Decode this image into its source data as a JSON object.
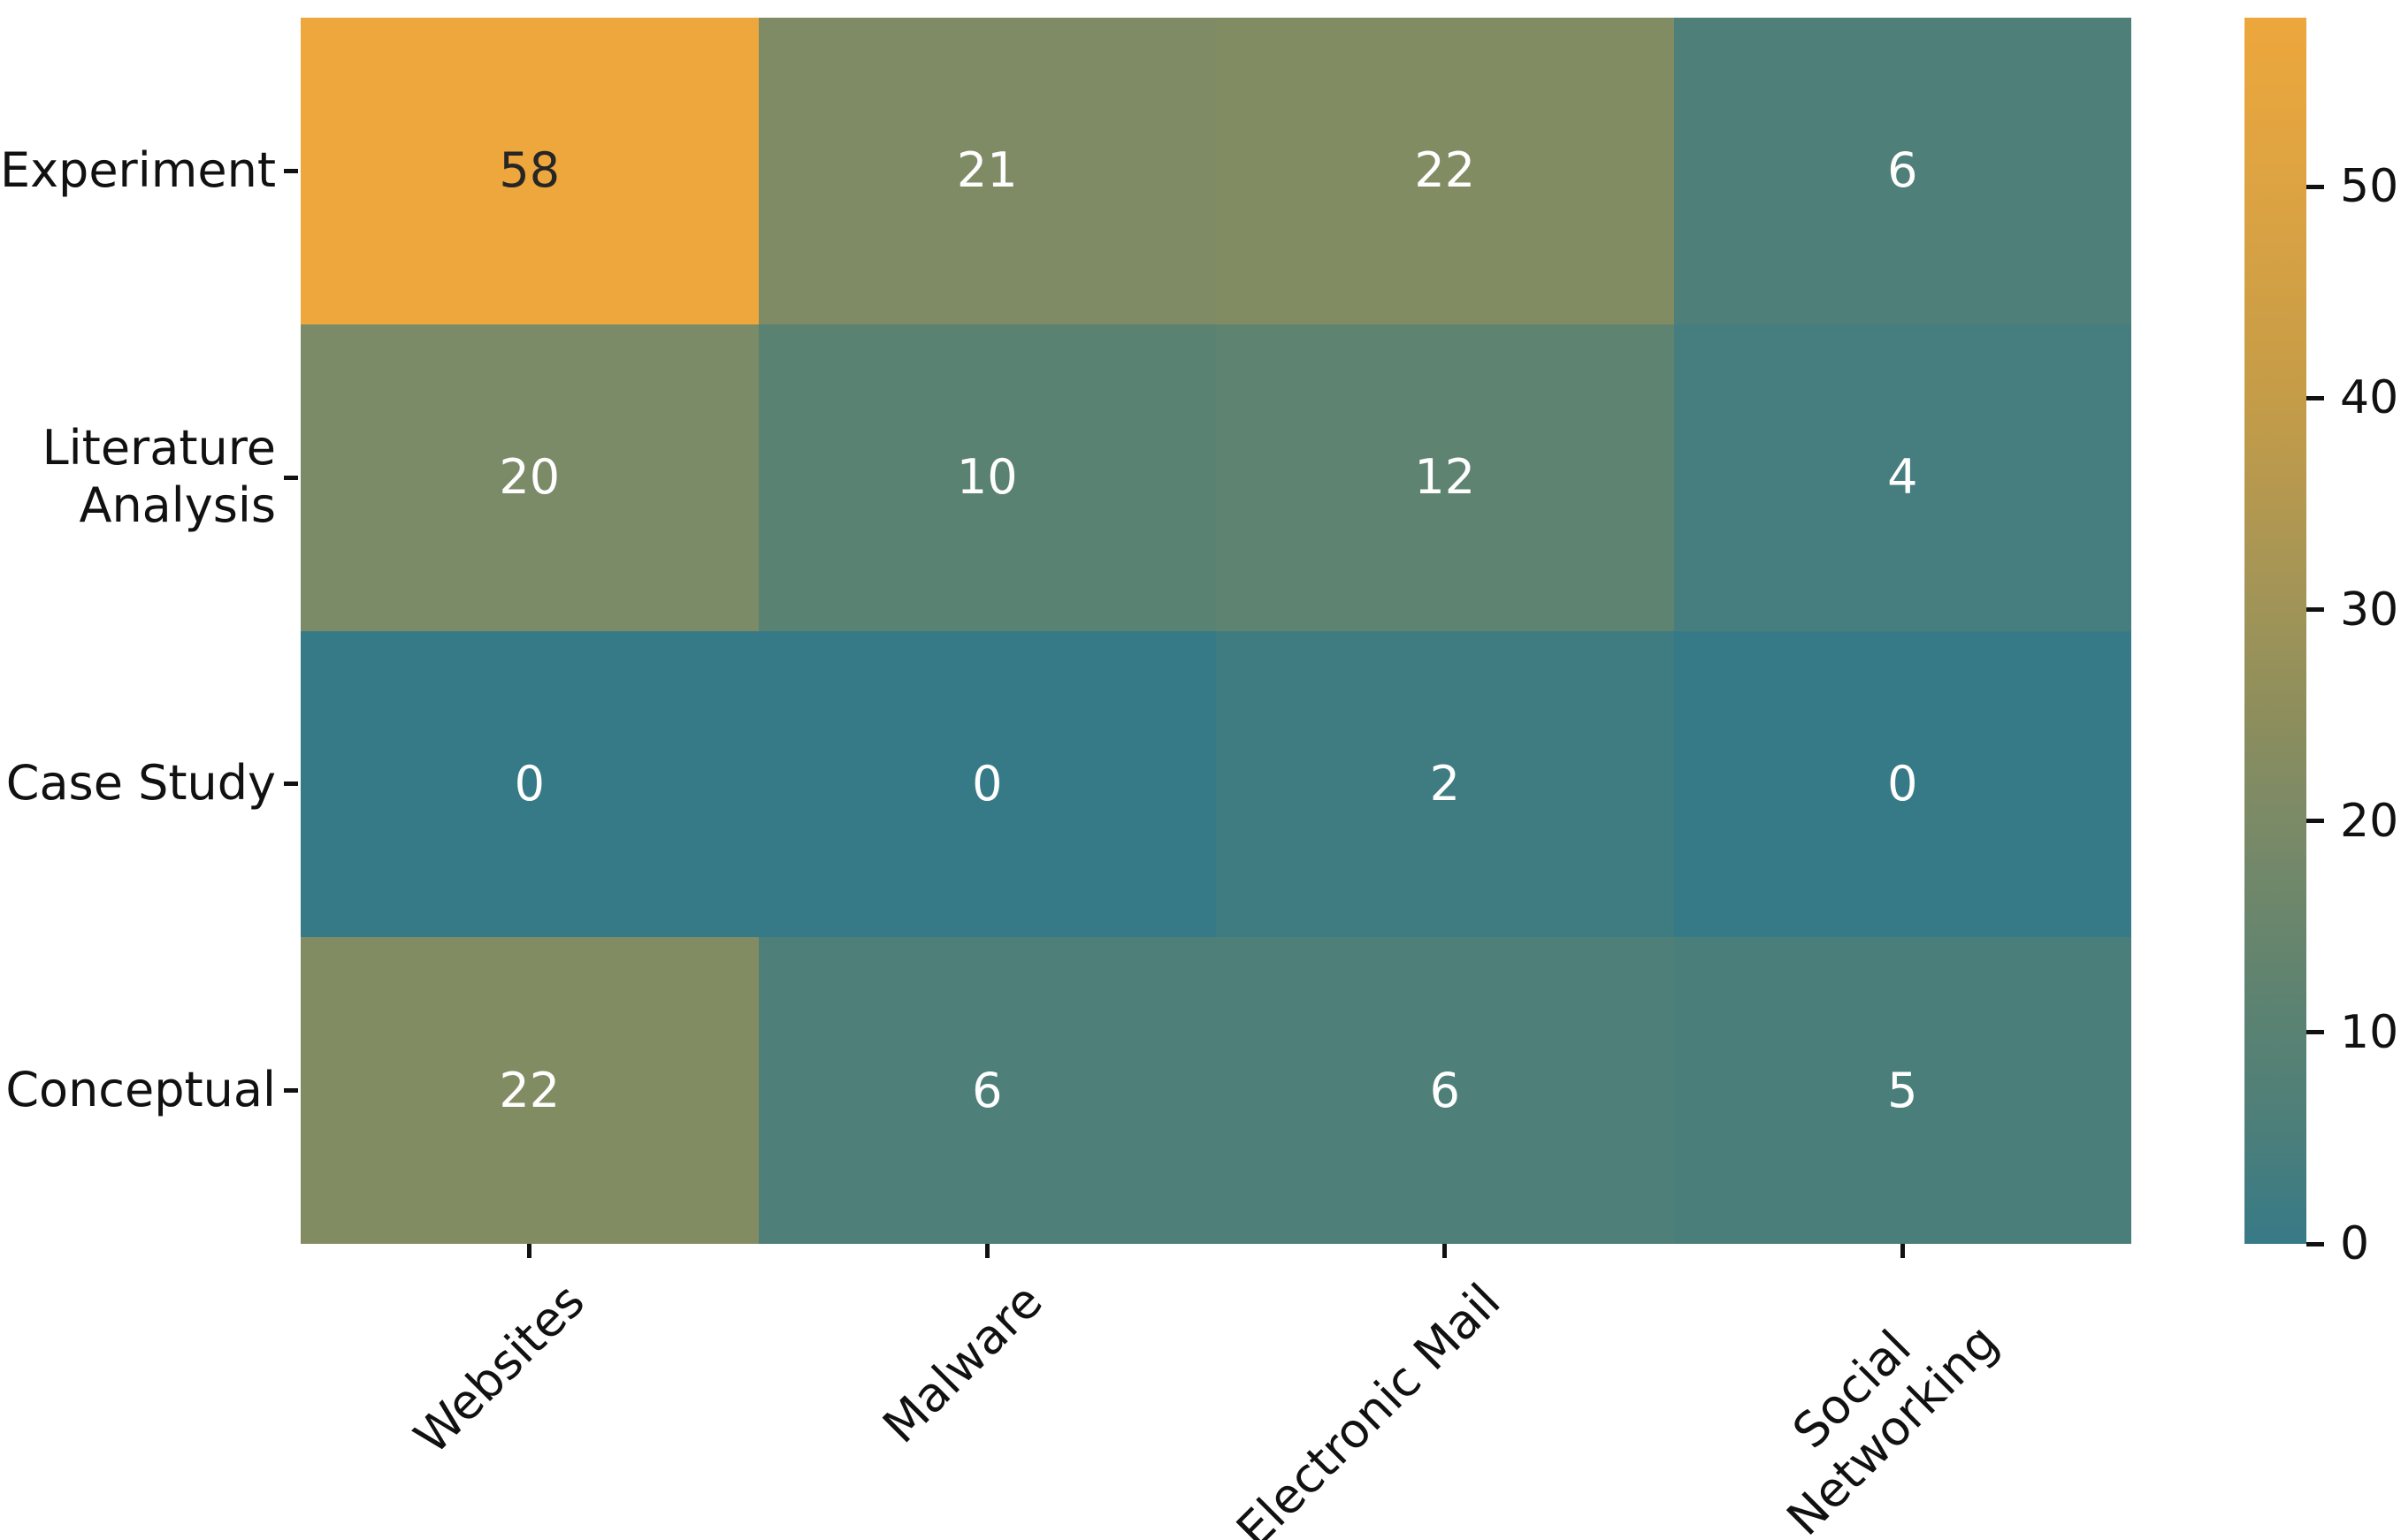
{
  "chart_data": {
    "type": "heatmap",
    "title": "",
    "xlabel": "",
    "ylabel": "",
    "row_labels": [
      [
        "Experiment"
      ],
      [
        "Literature",
        "Analysis"
      ],
      [
        "Case Study"
      ],
      [
        "Conceptual"
      ]
    ],
    "column_labels": [
      [
        "Websites"
      ],
      [
        "Malware"
      ],
      [
        "Electronic Mail"
      ],
      [
        "Social",
        "Networking"
      ]
    ],
    "values": [
      [
        58,
        21,
        22,
        6
      ],
      [
        20,
        10,
        12,
        4
      ],
      [
        0,
        0,
        2,
        0
      ],
      [
        22,
        6,
        6,
        5
      ]
    ],
    "vmin": 0,
    "vmax": 58,
    "grid": false,
    "legend_position": "right-colorbar",
    "colorbar_ticks": [
      0,
      10,
      20,
      30,
      40,
      50
    ],
    "colormap_stops": [
      {
        "t": 0.0,
        "color": "#377a87"
      },
      {
        "t": 0.103,
        "color": "#4e7f79"
      },
      {
        "t": 0.207,
        "color": "#5e8370"
      },
      {
        "t": 0.345,
        "color": "#7b8a67"
      },
      {
        "t": 0.431,
        "color": "#8d8e5c"
      },
      {
        "t": 0.517,
        "color": "#a09458"
      },
      {
        "t": 0.69,
        "color": "#c59c48"
      },
      {
        "t": 0.862,
        "color": "#dda342"
      },
      {
        "t": 1.0,
        "color": "#eda73c"
      }
    ],
    "annotation_color_light": "#ffffff",
    "annotation_color_dark": "#262626",
    "annotation_dark_threshold": 0.75,
    "axis_text_color": "#111111",
    "tick_color": "#111111",
    "background_color": "#ffffff"
  }
}
